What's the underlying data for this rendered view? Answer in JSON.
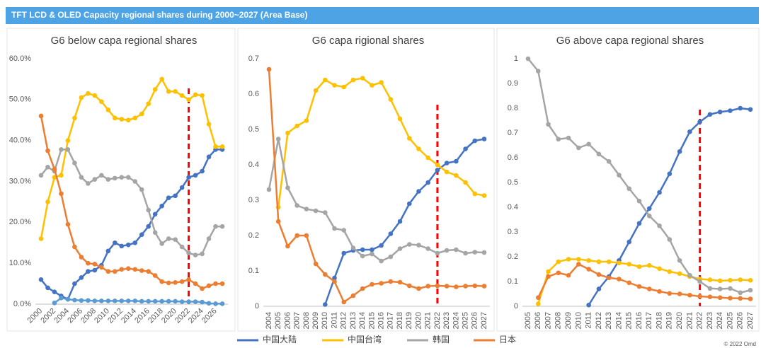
{
  "title": "TFT LCD & OLED Capacity regional shares during 2000~2027 (Area Base)",
  "footer": "© 2022 Omd",
  "chart_data": [
    {
      "type": "line",
      "title": "G6 below capa regional shares",
      "x": [
        2000,
        2001,
        2002,
        2003,
        2004,
        2005,
        2006,
        2007,
        2008,
        2009,
        2010,
        2011,
        2012,
        2013,
        2014,
        2015,
        2016,
        2017,
        2018,
        2019,
        2020,
        2021,
        2022,
        2023,
        2024,
        2025,
        2026,
        2027
      ],
      "xlim": [
        2000,
        2027
      ],
      "xticks": [
        2000,
        2002,
        2004,
        2006,
        2008,
        2010,
        2012,
        2014,
        2016,
        2018,
        2020,
        2022,
        2024,
        2026
      ],
      "ylim": [
        0,
        60
      ],
      "yticks": [
        {
          "value": 0,
          "label": "0.0%"
        },
        {
          "value": 10,
          "label": "10.0%"
        },
        {
          "value": 20,
          "label": "20.0%"
        },
        {
          "value": 30,
          "label": "30.0%"
        },
        {
          "value": 40,
          "label": "40.0%"
        },
        {
          "value": 50,
          "label": "50.0%"
        },
        {
          "value": 60,
          "label": "60.0%"
        }
      ],
      "grid": false,
      "vline": 2022,
      "vline_color": "#ff0000",
      "series": [
        {
          "name": "中国大陆",
          "color": "#4472c4",
          "values": [
            6,
            4,
            3,
            2,
            1.2,
            5,
            6.5,
            8,
            8.3,
            9.5,
            13,
            15,
            14.2,
            14.5,
            15,
            17,
            19,
            22,
            24,
            26,
            26.5,
            28.5,
            31,
            31.5,
            32.5,
            36,
            37.8,
            37.8
          ]
        },
        {
          "color": "#5b9bd5",
          "values": [
            null,
            null,
            0.3,
            1.5,
            1.2,
            1.0,
            0.9,
            0.9,
            0.8,
            0.8,
            0.8,
            0.8,
            0.8,
            0.8,
            0.8,
            0.7,
            0.7,
            0.7,
            0.7,
            0.7,
            0.7,
            0.6,
            0.6,
            0.6,
            0.5,
            0.2,
            0.1,
            0.1
          ]
        },
        {
          "name": "中国台湾",
          "color": "#ffc000",
          "values": [
            16,
            25,
            31,
            31.5,
            40,
            45.5,
            50.5,
            51.5,
            51,
            49.5,
            47.5,
            45.5,
            45.2,
            45,
            45.5,
            46.5,
            49,
            52.5,
            55,
            52,
            52,
            51,
            50,
            51.2,
            51,
            44,
            38.5,
            38.5
          ]
        },
        {
          "name": "韩国",
          "color": "#a5a5a5",
          "values": [
            31.5,
            33.5,
            32.5,
            37.8,
            37.8,
            34.5,
            31,
            29.5,
            30.5,
            31.5,
            30.5,
            30.8,
            31,
            31,
            30,
            28,
            23,
            17.5,
            14.8,
            16,
            15.8,
            14,
            12.5,
            12,
            12.3,
            16,
            19,
            19
          ]
        },
        {
          "name": "日本",
          "color": "#ed7d31",
          "values": [
            46,
            37.5,
            33,
            27,
            19.5,
            14,
            11.5,
            10,
            9.8,
            9,
            8,
            8,
            8.5,
            8.7,
            8.5,
            8.2,
            8,
            7,
            5.5,
            5.2,
            5.3,
            5.5,
            6,
            5,
            3.8,
            4.5,
            5,
            5
          ]
        }
      ]
    },
    {
      "type": "line",
      "title": "G6 capa rigional shares",
      "x": [
        2004,
        2005,
        2006,
        2007,
        2008,
        2009,
        2010,
        2011,
        2012,
        2013,
        2014,
        2015,
        2016,
        2017,
        2018,
        2019,
        2020,
        2021,
        2022,
        2023,
        2024,
        2025,
        2026,
        2027
      ],
      "xlim": [
        2004,
        2027
      ],
      "xticks": [
        2004,
        2005,
        2006,
        2007,
        2008,
        2009,
        2010,
        2011,
        2012,
        2013,
        2014,
        2015,
        2016,
        2017,
        2018,
        2019,
        2020,
        2021,
        2022,
        2023,
        2024,
        2025,
        2026,
        2027
      ],
      "ylim": [
        0,
        0.7
      ],
      "yticks": [
        0,
        0.1,
        0.2,
        0.3,
        0.4,
        0.5,
        0.6,
        0.7
      ],
      "grid": false,
      "vline": 2022,
      "vline_color": "#ff0000",
      "series": [
        {
          "name": "中国大陆",
          "color": "#4472c4",
          "values": [
            null,
            null,
            null,
            null,
            null,
            null,
            0.005,
            0.08,
            0.15,
            0.158,
            0.16,
            0.16,
            0.172,
            0.205,
            0.24,
            0.29,
            0.325,
            0.35,
            0.385,
            0.405,
            0.41,
            0.445,
            0.468,
            0.473
          ]
        },
        {
          "name": "中国台湾",
          "color": "#ffc000",
          "values": [
            null,
            0.28,
            0.49,
            0.51,
            0.525,
            0.61,
            0.64,
            0.625,
            0.62,
            0.64,
            0.645,
            0.625,
            0.633,
            0.585,
            0.53,
            0.475,
            0.445,
            0.42,
            0.4,
            0.38,
            0.37,
            0.35,
            0.318,
            0.313
          ]
        },
        {
          "name": "韩国",
          "color": "#a5a5a5",
          "values": [
            0.33,
            0.473,
            0.335,
            0.285,
            0.275,
            0.27,
            0.265,
            0.22,
            0.215,
            0.165,
            0.142,
            0.148,
            0.128,
            0.14,
            0.163,
            0.175,
            0.173,
            0.163,
            0.15,
            0.158,
            0.16,
            0.15,
            0.153,
            0.152
          ]
        },
        {
          "name": "日本",
          "color": "#ed7d31",
          "values": [
            0.67,
            0.24,
            0.17,
            0.2,
            0.2,
            0.12,
            0.09,
            0.07,
            0.012,
            0.03,
            0.05,
            0.062,
            0.065,
            0.07,
            0.068,
            0.058,
            0.05,
            0.057,
            0.058,
            0.057,
            0.055,
            0.057,
            0.058,
            0.057
          ]
        }
      ]
    },
    {
      "type": "line",
      "title": "G6 above capa regional shares",
      "x": [
        2005,
        2006,
        2007,
        2008,
        2009,
        2010,
        2011,
        2012,
        2013,
        2014,
        2015,
        2016,
        2017,
        2018,
        2019,
        2020,
        2021,
        2022,
        2023,
        2024,
        2025,
        2026,
        2027
      ],
      "xlim": [
        2005,
        2027
      ],
      "xticks": [
        2005,
        2006,
        2007,
        2008,
        2009,
        2010,
        2011,
        2012,
        2013,
        2014,
        2015,
        2016,
        2017,
        2018,
        2019,
        2020,
        2021,
        2022,
        2023,
        2024,
        2025,
        2026,
        2027
      ],
      "ylim": [
        0,
        1
      ],
      "yticks": [
        0,
        0.1,
        0.2,
        0.3,
        0.4,
        0.5,
        0.6,
        0.7,
        0.8,
        0.9,
        1
      ],
      "grid": false,
      "vline": 2022,
      "vline_color": "#ff0000",
      "series": [
        {
          "name": "中国大陆",
          "color": "#4472c4",
          "values": [
            null,
            null,
            null,
            null,
            null,
            null,
            0.005,
            0.07,
            0.12,
            0.185,
            0.26,
            0.335,
            0.395,
            0.46,
            0.535,
            0.625,
            0.705,
            0.745,
            0.775,
            0.785,
            0.79,
            0.8,
            0.795
          ]
        },
        {
          "name": "中国台湾",
          "color": "#ffc000",
          "values": [
            null,
            0.01,
            0.14,
            0.18,
            0.19,
            0.19,
            0.185,
            0.18,
            0.18,
            0.175,
            0.17,
            0.16,
            0.165,
            0.152,
            0.14,
            0.132,
            0.12,
            0.11,
            0.107,
            0.103,
            0.105,
            0.107,
            0.105
          ]
        },
        {
          "name": "韩国",
          "color": "#a5a5a5",
          "values": [
            1.0,
            0.95,
            0.735,
            0.675,
            0.68,
            0.64,
            0.655,
            0.615,
            0.585,
            0.53,
            0.475,
            0.425,
            0.365,
            0.325,
            0.27,
            0.185,
            0.125,
            0.1,
            0.072,
            0.07,
            0.072,
            0.055,
            0.065
          ]
        },
        {
          "name": "日本",
          "color": "#ed7d31",
          "values": [
            null,
            0.035,
            0.12,
            0.135,
            0.125,
            0.17,
            0.15,
            0.128,
            0.115,
            0.11,
            0.095,
            0.08,
            0.07,
            0.06,
            0.052,
            0.05,
            0.045,
            0.04,
            0.038,
            0.035,
            0.033,
            0.032,
            0.03
          ]
        }
      ]
    }
  ]
}
